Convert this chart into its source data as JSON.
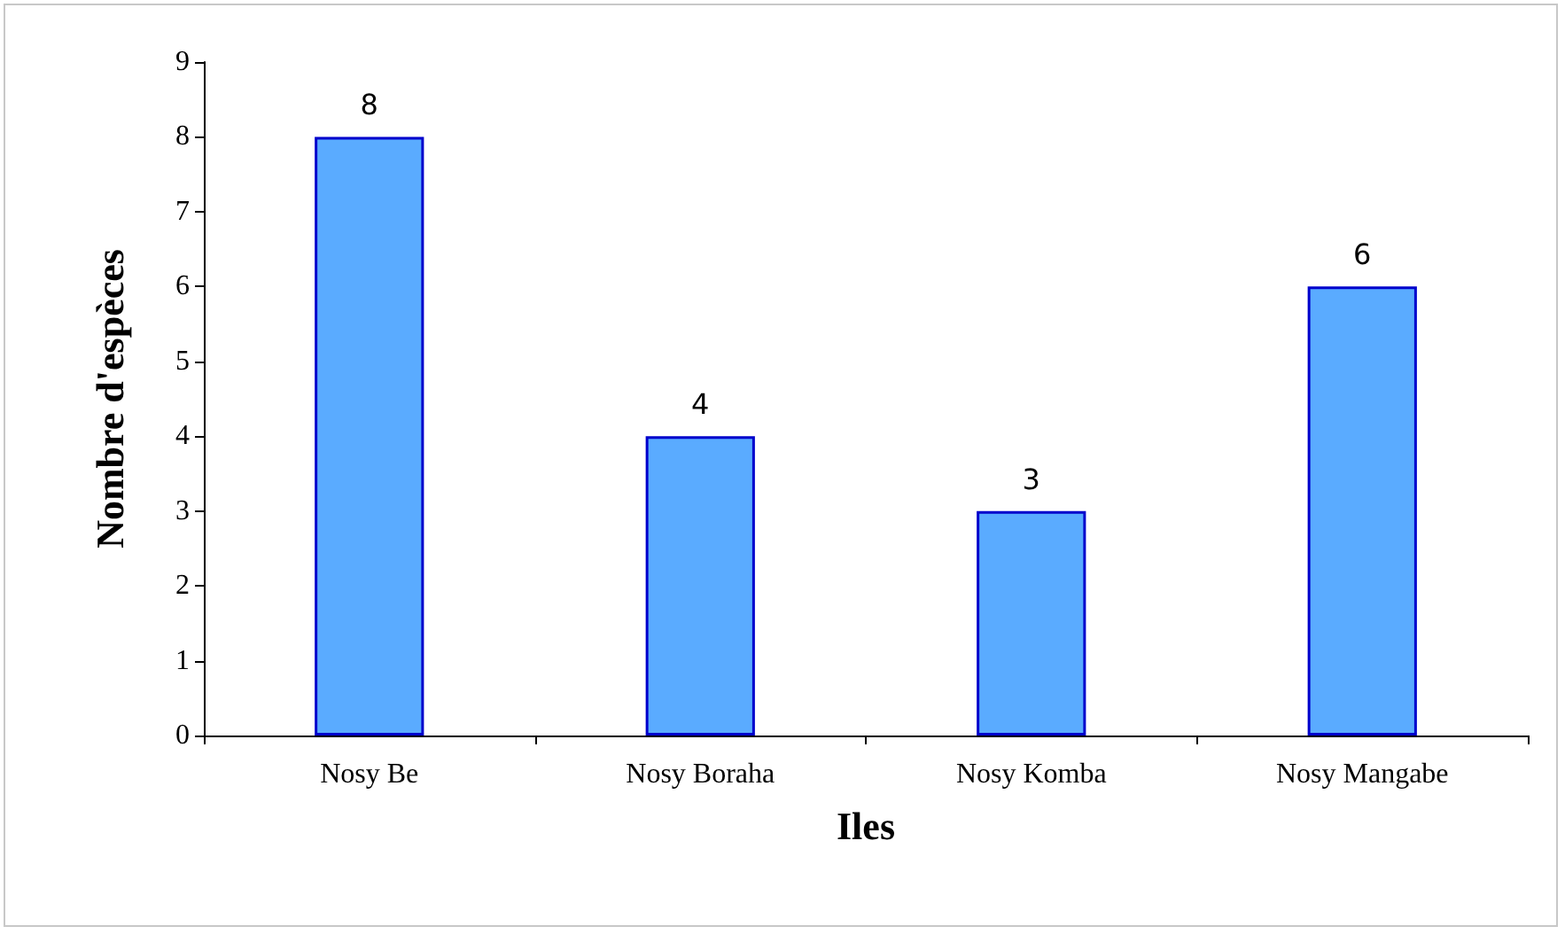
{
  "chart_data": {
    "type": "bar",
    "xlabel": "Iles",
    "ylabel": "Nombre d'espèces",
    "categories": [
      "Nosy Be",
      "Nosy Boraha",
      "Nosy Komba",
      "Nosy Mangabe"
    ],
    "values": [
      8,
      4,
      3,
      6
    ],
    "color": "#5aabff",
    "ylim": [
      0,
      9
    ],
    "yticks": [
      0,
      1,
      2,
      3,
      4,
      5,
      6,
      7,
      8,
      9
    ],
    "grid": false,
    "data_labels": true
  }
}
